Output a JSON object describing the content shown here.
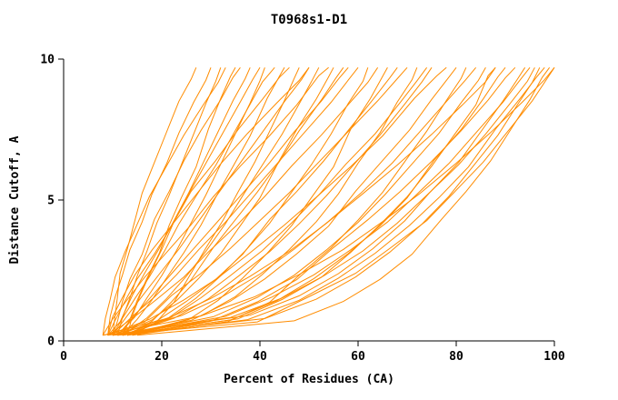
{
  "chart_data": {
    "type": "line",
    "title": "T0968s1-D1",
    "xlabel": "Percent of Residues (CA)",
    "ylabel": "Distance Cutoff, A",
    "xlim": [
      0,
      100
    ],
    "ylim": [
      0,
      10
    ],
    "x_ticks": [
      0,
      20,
      40,
      60,
      80,
      100
    ],
    "y_ticks": [
      0,
      5,
      10
    ],
    "grid": false,
    "legend": false,
    "line_color": "#ff8c00",
    "axis_color": "#000000",
    "y_samples": [
      0.2,
      0.8,
      1.5,
      2.3,
      3.2,
      4.2,
      5.2,
      6.3,
      7.4,
      8.5,
      9.3,
      9.7
    ],
    "series_x": [
      [
        10,
        10.5,
        11,
        11.5,
        13,
        14.5,
        16,
        18.5,
        21,
        23.5,
        26,
        27
      ],
      [
        9,
        9.5,
        10.5,
        12,
        13.5,
        16,
        18,
        21,
        23.5,
        26.5,
        29,
        30
      ],
      [
        11,
        12,
        13.5,
        15,
        17,
        19,
        21.5,
        24,
        26.5,
        29,
        31,
        32
      ],
      [
        8,
        8.5,
        9.5,
        10.5,
        12.5,
        15,
        17.5,
        21,
        24.5,
        28.5,
        31.5,
        33
      ],
      [
        12,
        13.5,
        15,
        17,
        19.5,
        21.5,
        24,
        27,
        29.5,
        32,
        34,
        35
      ],
      [
        10,
        11,
        12,
        13.5,
        16,
        18.5,
        21.5,
        24.5,
        28,
        32,
        34.5,
        36
      ],
      [
        9,
        11.5,
        14,
        16.5,
        19.5,
        22.5,
        25.5,
        28.5,
        31.5,
        34.5,
        37,
        38
      ],
      [
        13,
        14,
        15.5,
        17.5,
        20,
        22.5,
        25.5,
        29,
        32.5,
        36,
        38.5,
        40
      ],
      [
        11,
        14.5,
        17,
        20,
        23,
        26,
        29,
        32,
        35,
        38,
        40,
        41
      ],
      [
        10,
        12,
        14.5,
        17.5,
        20.5,
        23.5,
        27,
        31,
        34.5,
        38,
        40.5,
        43
      ],
      [
        12,
        15,
        18,
        21,
        24.5,
        28,
        31,
        34.5,
        38,
        41.5,
        44,
        45
      ],
      [
        9,
        10.5,
        12.5,
        15,
        18.5,
        22,
        26,
        31,
        35.5,
        40.5,
        44,
        46
      ],
      [
        14,
        19,
        22.5,
        26,
        29,
        32.5,
        35.5,
        39,
        42,
        45,
        47,
        48
      ],
      [
        10,
        13,
        16,
        19.5,
        23.5,
        27.5,
        31.5,
        36,
        40.5,
        45,
        48.5,
        50
      ],
      [
        9,
        10,
        12,
        14.5,
        18,
        22.5,
        27,
        32,
        37.5,
        43.5,
        48,
        50
      ],
      [
        12,
        17,
        21,
        25,
        29,
        33,
        36.5,
        40.5,
        44.5,
        48,
        50.5,
        52
      ],
      [
        8,
        10,
        13,
        16.5,
        21,
        26,
        30.5,
        36,
        42,
        47.5,
        52,
        54
      ],
      [
        11,
        18,
        23,
        27.5,
        32,
        36,
        40,
        44,
        47.5,
        51.5,
        54,
        55
      ],
      [
        13,
        18,
        22,
        26,
        30.5,
        35,
        39.5,
        44,
        48,
        52.5,
        55.5,
        57
      ],
      [
        11,
        14.5,
        18,
        22,
        26.5,
        31.5,
        36.5,
        42,
        47,
        52.5,
        56,
        58
      ],
      [
        10,
        14,
        18.5,
        23,
        27.5,
        33,
        38,
        43.5,
        49,
        54.5,
        58,
        60
      ],
      [
        12,
        21.5,
        27,
        32,
        37,
        42,
        46,
        50.5,
        54.5,
        58,
        61,
        62
      ],
      [
        9,
        14,
        19,
        24.5,
        29.5,
        35.5,
        41,
        46.5,
        52.5,
        58,
        62,
        64
      ],
      [
        14,
        25.5,
        31.5,
        36.5,
        41.5,
        46.5,
        50.5,
        55,
        58.5,
        62.5,
        65,
        66
      ],
      [
        11,
        19,
        25,
        31,
        36.5,
        42,
        47.5,
        53,
        58,
        63,
        66.5,
        68
      ],
      [
        10,
        16.5,
        22,
        28,
        34,
        40,
        46,
        52,
        58,
        64,
        68,
        70
      ],
      [
        13,
        28,
        35,
        40.5,
        46,
        51.5,
        56,
        60,
        64.5,
        68,
        71,
        72
      ],
      [
        13,
        22,
        28,
        34,
        40.5,
        46.5,
        52,
        57.5,
        63.5,
        68.5,
        72,
        74
      ],
      [
        12,
        22.5,
        29.5,
        35.5,
        42,
        48,
        53.5,
        59,
        64.5,
        69.5,
        73,
        75
      ],
      [
        9,
        17.5,
        24.5,
        31.5,
        38,
        45,
        51.5,
        58.5,
        65,
        71.5,
        76,
        78
      ],
      [
        11,
        26,
        34,
        41,
        47.5,
        54,
        59.5,
        65,
        70.5,
        75,
        78.5,
        80
      ],
      [
        14,
        33.5,
        42,
        48.5,
        54.5,
        60,
        65,
        69.5,
        74,
        78,
        81,
        82
      ],
      [
        10,
        24,
        32.5,
        40,
        47,
        54,
        60.5,
        67,
        72.5,
        78,
        82,
        84
      ],
      [
        12,
        30.5,
        39.5,
        47,
        53.5,
        60,
        65.5,
        71,
        76.5,
        81,
        84.5,
        86
      ],
      [
        8,
        21.5,
        30,
        38,
        46,
        53.5,
        60.5,
        68,
        75,
        81.5,
        86,
        88
      ],
      [
        12,
        35.5,
        44.5,
        52.5,
        58.5,
        64.5,
        70,
        75,
        79.5,
        84,
        86.5,
        88
      ],
      [
        11,
        34,
        43.5,
        51,
        58,
        64.5,
        70,
        75.5,
        81,
        85.5,
        88.5,
        90
      ],
      [
        13,
        30,
        39.5,
        47.5,
        55,
        62,
        68.5,
        75,
        81,
        86.5,
        90,
        92
      ],
      [
        10,
        38,
        48,
        56,
        63,
        69.5,
        74.5,
        80.5,
        85,
        89.5,
        92.5,
        94
      ],
      [
        12,
        33,
        42.5,
        51,
        58.5,
        66,
        72,
        78.5,
        84,
        89.5,
        93,
        95
      ],
      [
        9,
        34,
        44.5,
        53,
        61,
        68,
        74,
        80.5,
        86,
        91,
        94.5,
        96
      ],
      [
        11,
        41,
        51.5,
        59.5,
        66.5,
        73,
        78.5,
        83.5,
        88.5,
        92.5,
        95.5,
        97
      ],
      [
        13,
        37.5,
        48,
        56,
        63.5,
        70.5,
        76.5,
        82.5,
        88,
        93,
        96.5,
        98
      ],
      [
        15,
        47,
        57,
        64.5,
        71,
        77,
        82,
        87,
        91,
        95,
        97.5,
        99
      ],
      [
        10,
        39.5,
        50.5,
        59.5,
        66.5,
        74,
        79.5,
        85.5,
        90.5,
        95.5,
        98.5,
        100
      ],
      [
        8,
        28,
        39,
        48,
        57,
        65,
        72.5,
        80,
        87,
        93.5,
        98,
        100
      ]
    ]
  }
}
